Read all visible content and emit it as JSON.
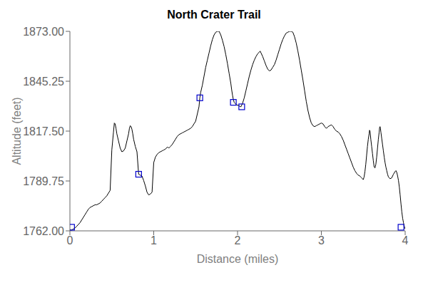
{
  "chart_data": {
    "type": "line",
    "title": "North Crater Trail",
    "x_label": "Distance (miles)",
    "y_label": "Altitude (feet)",
    "xlim": [
      0,
      4
    ],
    "xticks": [
      0,
      1,
      2,
      3,
      4
    ],
    "ylim": [
      1762,
      1873
    ],
    "yticks": [
      {
        "value": 1762,
        "label": "1762.00"
      },
      {
        "value": 1789.75,
        "label": "1789.75"
      },
      {
        "value": 1817.5,
        "label": "1817.50"
      },
      {
        "value": 1845.25,
        "label": "1845.25"
      },
      {
        "value": 1873,
        "label": "1873.00"
      }
    ],
    "grid": false,
    "series": [
      {
        "type": "line",
        "color": "#000000",
        "x": [
          0,
          0.02,
          0.04,
          0.06,
          0.08,
          0.1,
          0.12,
          0.14,
          0.16,
          0.18,
          0.2,
          0.22,
          0.24,
          0.26,
          0.28,
          0.3,
          0.32,
          0.34,
          0.36,
          0.38,
          0.4,
          0.42,
          0.44,
          0.46,
          0.48,
          0.5,
          0.52,
          0.53,
          0.54,
          0.55,
          0.56,
          0.58,
          0.6,
          0.62,
          0.64,
          0.66,
          0.68,
          0.7,
          0.71,
          0.72,
          0.73,
          0.74,
          0.75,
          0.76,
          0.78,
          0.8,
          0.82,
          0.84,
          0.86,
          0.88,
          0.9,
          0.92,
          0.94,
          0.96,
          0.98,
          1,
          1.02,
          1.04,
          1.06,
          1.08,
          1.1,
          1.12,
          1.14,
          1.15,
          1.16,
          1.17,
          1.18,
          1.19,
          1.2,
          1.22,
          1.24,
          1.26,
          1.28,
          1.3,
          1.32,
          1.34,
          1.36,
          1.38,
          1.4,
          1.42,
          1.44,
          1.46,
          1.48,
          1.5,
          1.52,
          1.54,
          1.55,
          1.56,
          1.58,
          1.6,
          1.62,
          1.64,
          1.66,
          1.68,
          1.7,
          1.72,
          1.74,
          1.76,
          1.78,
          1.8,
          1.82,
          1.84,
          1.86,
          1.88,
          1.9,
          1.92,
          1.93,
          1.94,
          1.95,
          1.96,
          1.97,
          1.98,
          1.99,
          2,
          2.02,
          2.04,
          2.06,
          2.08,
          2.1,
          2.12,
          2.14,
          2.16,
          2.18,
          2.2,
          2.22,
          2.24,
          2.26,
          2.27,
          2.28,
          2.3,
          2.32,
          2.34,
          2.36,
          2.38,
          2.4,
          2.42,
          2.44,
          2.46,
          2.48,
          2.5,
          2.52,
          2.54,
          2.56,
          2.58,
          2.6,
          2.62,
          2.64,
          2.66,
          2.68,
          2.7,
          2.72,
          2.74,
          2.76,
          2.78,
          2.8,
          2.82,
          2.84,
          2.86,
          2.88,
          2.9,
          2.92,
          2.94,
          2.96,
          2.98,
          3,
          3.02,
          3.04,
          3.06,
          3.08,
          3.1,
          3.12,
          3.14,
          3.16,
          3.18,
          3.2,
          3.22,
          3.24,
          3.26,
          3.28,
          3.3,
          3.32,
          3.34,
          3.36,
          3.38,
          3.4,
          3.42,
          3.44,
          3.46,
          3.47,
          3.48,
          3.49,
          3.5,
          3.51,
          3.52,
          3.53,
          3.54,
          3.55,
          3.56,
          3.57,
          3.575,
          3.58,
          3.585,
          3.59,
          3.6,
          3.61,
          3.62,
          3.63,
          3.64,
          3.65,
          3.66,
          3.67,
          3.68,
          3.69,
          3.695,
          3.7,
          3.705,
          3.71,
          3.72,
          3.73,
          3.74,
          3.75,
          3.76,
          3.77,
          3.78,
          3.79,
          3.8,
          3.82,
          3.84,
          3.86,
          3.88,
          3.89,
          3.9,
          3.91,
          3.92,
          3.93,
          3.94,
          3.95,
          3.96,
          3.97,
          3.98,
          3.99,
          4
        ],
        "values": [
          1762.5,
          1762.5,
          1763,
          1763.5,
          1764.5,
          1765.5,
          1766.5,
          1768,
          1769.5,
          1771,
          1772.5,
          1774,
          1775,
          1775.5,
          1776,
          1776.5,
          1776.5,
          1777,
          1777.5,
          1778.5,
          1779.5,
          1780.5,
          1781.5,
          1783,
          1784.5,
          1807,
          1817,
          1822,
          1821.5,
          1819,
          1816,
          1812,
          1808,
          1806,
          1806.5,
          1808,
          1812,
          1816,
          1819,
          1820.5,
          1820,
          1818.5,
          1816,
          1813,
          1809,
          1806,
          1793.5,
          1793,
          1792.5,
          1790,
          1787,
          1783.5,
          1782,
          1782.5,
          1783.5,
          1800,
          1803,
          1804.5,
          1805.5,
          1806,
          1806.5,
          1807,
          1807.5,
          1808,
          1808.5,
          1808.5,
          1808,
          1808.5,
          1809,
          1810,
          1811.5,
          1813,
          1814.5,
          1815.5,
          1816,
          1816.5,
          1817,
          1817.5,
          1818,
          1818.5,
          1819,
          1820,
          1821.5,
          1823,
          1827,
          1831,
          1836,
          1839,
          1843,
          1848,
          1853,
          1857,
          1861,
          1865,
          1868.5,
          1871,
          1872.5,
          1873,
          1873,
          1871,
          1868,
          1864.5,
          1860,
          1855,
          1849.5,
          1844,
          1840.5,
          1837.5,
          1835,
          1833.5,
          1833,
          1832.5,
          1832,
          1832,
          1831.5,
          1831,
          1833,
          1836,
          1840,
          1844,
          1848,
          1851.5,
          1854.5,
          1857,
          1859,
          1860.5,
          1861.5,
          1862,
          1861,
          1859,
          1856.5,
          1854,
          1852,
          1851,
          1851.5,
          1853,
          1854.5,
          1857,
          1860,
          1863,
          1866,
          1868.5,
          1870.5,
          1872,
          1872.5,
          1873,
          1873,
          1872.5,
          1870,
          1866.5,
          1862,
          1857,
          1851.5,
          1846,
          1840,
          1834,
          1829,
          1825,
          1822,
          1820.5,
          1820,
          1820.5,
          1821,
          1821.5,
          1822,
          1821.5,
          1820,
          1819,
          1820,
          1820.5,
          1821,
          1820,
          1818.5,
          1817.5,
          1817,
          1816,
          1814.5,
          1812.5,
          1810,
          1807.5,
          1805,
          1802.5,
          1800,
          1797.5,
          1795.5,
          1794,
          1793,
          1792.5,
          1792,
          1791.5,
          1791,
          1790.5,
          1792,
          1795,
          1799,
          1804,
          1809,
          1813,
          1816,
          1818,
          1817.5,
          1815.5,
          1813,
          1809,
          1805,
          1801,
          1797.5,
          1797,
          1799,
          1803,
          1808,
          1813,
          1817,
          1819.5,
          1820,
          1819,
          1817,
          1813.5,
          1810,
          1806.5,
          1803,
          1800,
          1797.5,
          1795.5,
          1793.5,
          1792,
          1791,
          1791.5,
          1793.5,
          1795,
          1795.5,
          1794.5,
          1792.5,
          1790,
          1786.5,
          1782,
          1777,
          1772.5,
          1769,
          1766.5,
          1764.5,
          1763
        ]
      },
      {
        "type": "scatter",
        "color": "#0000cc",
        "marker": "square",
        "x": [
          0.02,
          0.82,
          1.55,
          1.95,
          2.05,
          3.95
        ],
        "values": [
          1764.0,
          1793.5,
          1836.0,
          1833.5,
          1831.0,
          1764.0
        ]
      }
    ]
  }
}
